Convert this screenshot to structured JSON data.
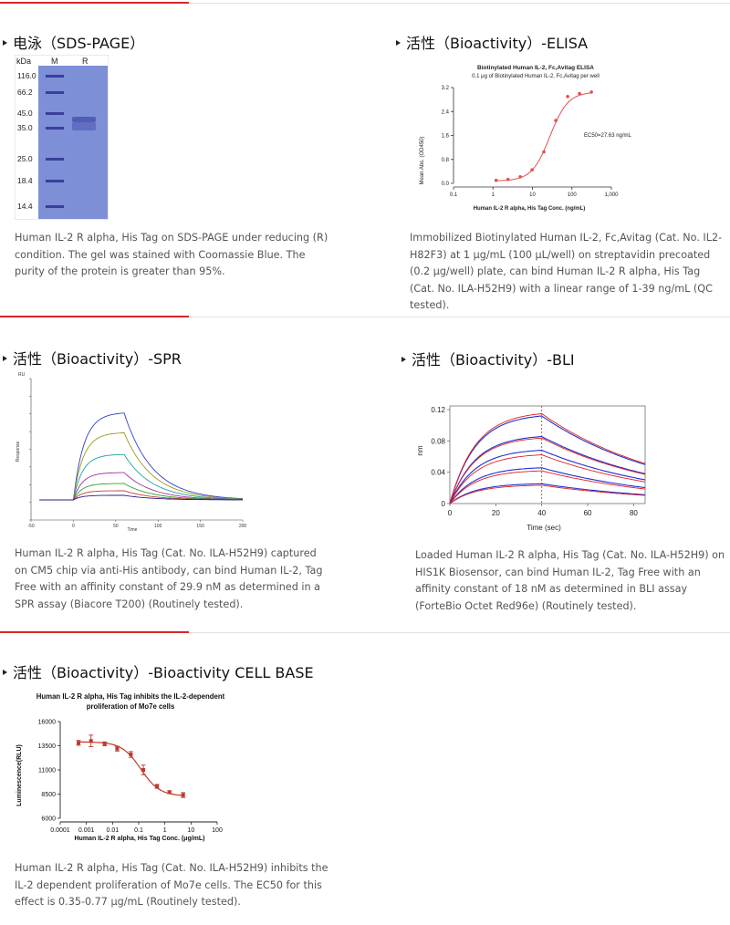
{
  "sections": {
    "sds": {
      "title": "电泳（SDS-PAGE）",
      "gel": {
        "col_kda": "kDa",
        "col_m": "M",
        "col_r": "R",
        "ladder": [
          "116.0",
          "66.2",
          "45.0",
          "35.0",
          "25.0",
          "18.4",
          "14.4"
        ]
      },
      "description": "Human IL-2 R alpha, His Tag on SDS-PAGE under reducing (R) condition. The gel was stained with Coomassie Blue. The purity of the protein is greater than 95%."
    },
    "elisa": {
      "title": "活性（Bioactivity）-ELISA",
      "chart_title": "Biotinylated Human IL-2, Fc,Avitag ELISA",
      "chart_subtitle": "0.1 μg of Biotinylated Human IL-2, Fc,Avitag per well",
      "ylabel": "Mean Abs. (OD450)",
      "xlabel": "Human IL-2 R alpha, His Tag Conc. (ng/mL)",
      "annotation": "EC50=27.63 ng/mL",
      "description": "Immobilized Biotinylated Human IL-2, Fc,Avitag (Cat. No. IL2-H82F3) at 1 μg/mL (100 μL/well) on streptavidin precoated (0.2 μg/well) plate, can bind Human IL-2 R alpha, His Tag (Cat. No. ILA-H52H9) with a linear range of 1-39 ng/mL (QC tested)."
    },
    "spr": {
      "title": "活性（Bioactivity）-SPR",
      "ylabel": "Response",
      "xlabel": "Time",
      "yunit": "RU",
      "description": "Human IL-2 R alpha, His Tag (Cat. No. ILA-H52H9) captured on CM5 chip via anti-His antibody, can bind Human IL-2, Tag Free with an affinity constant of 29.9 nM as determined in a SPR assay (Biacore T200) (Routinely tested)."
    },
    "bli": {
      "title": "活性（Bioactivity）-BLI",
      "ylabel": "nm",
      "xlabel": "Time (sec)",
      "description": "Loaded Human IL-2 R alpha, His Tag (Cat. No. ILA-H52H9) on HIS1K Biosensor, can bind Human IL-2, Tag Free with an affinity constant of 18 nM as determined in BLI assay (ForteBio Octet Red96e) (Routinely tested)."
    },
    "cell": {
      "title": "活性（Bioactivity）-Bioactivity CELL BASE",
      "chart_title_1": "Human IL-2 R alpha, His Tag inhibits the IL-2-dependent",
      "chart_title_2": "proliferation of Mo7e cells",
      "ylabel": "Luminescence(RLU)",
      "xlabel": "Human IL-2 R alpha, His Tag Conc. (μg/mL)",
      "description": "Human IL-2 R alpha, His Tag (Cat. No. ILA-H52H9) inhibits the IL-2 dependent proliferation of Mo7e cells. The EC50 for this effect is 0.35-0.77 μg/mL (Routinely tested)."
    }
  },
  "colors": {
    "accent_red": "#d9252b",
    "gel_blue": "#7d8fd6",
    "elisa_red": "#e05050"
  },
  "chart_data": [
    {
      "type": "scatter",
      "title": "Biotinylated Human IL-2, Fc,Avitag ELISA",
      "subtitle": "0.1 μg of Biotinylated Human IL-2, Fc,Avitag per well",
      "xlabel": "Human IL-2 R alpha, His Tag Conc. (ng/mL)",
      "ylabel": "Mean Abs. (OD450)",
      "xscale": "log",
      "xlim": [
        0.1,
        1000
      ],
      "ylim": [
        0,
        3.2
      ],
      "xticks": [
        "0.1",
        "1",
        "10",
        "100",
        "1,000"
      ],
      "yticks": [
        "0.0",
        "0.8",
        "1.6",
        "2.4",
        "3.2"
      ],
      "x": [
        1.2,
        2.4,
        4.9,
        9.8,
        19.5,
        39,
        78,
        156,
        312
      ],
      "y": [
        0.1,
        0.13,
        0.22,
        0.45,
        1.05,
        2.1,
        2.9,
        3.0,
        3.05
      ],
      "annotation": "EC50=27.63 ng/mL"
    },
    {
      "type": "line",
      "ylabel": "Response",
      "xlabel": "Time",
      "yunit": "RU",
      "xlim": [
        -50,
        200
      ],
      "xticks": [
        "-50",
        "0",
        "50",
        "100",
        "150",
        "200"
      ],
      "series": [
        {
          "amplitude": 48,
          "color": "#3040c0"
        },
        {
          "amplitude": 37,
          "color": "#9a9a20"
        },
        {
          "amplitude": 25,
          "color": "#20a0a0"
        },
        {
          "amplitude": 15,
          "color": "#a030a0"
        },
        {
          "amplitude": 9,
          "color": "#30a030"
        },
        {
          "amplitude": 5,
          "color": "#c04040"
        },
        {
          "amplitude": 2.5,
          "color": "#202080"
        }
      ]
    },
    {
      "type": "line",
      "xlabel": "Time (sec)",
      "ylabel": "nm",
      "xlim": [
        0,
        85
      ],
      "ylim": [
        0,
        0.12
      ],
      "xticks": [
        "0",
        "20",
        "40",
        "60",
        "80"
      ],
      "yticks": [
        "0",
        "0.04",
        "0.08",
        "0.12"
      ],
      "association_end": 40,
      "series": [
        {
          "name_fit": false,
          "color": "#2030d0",
          "amplitude": 0.115
        },
        {
          "name_fit": true,
          "color": "#e02020",
          "amplitude": 0.118
        },
        {
          "name_fit": false,
          "color": "#2030d0",
          "amplitude": 0.088
        },
        {
          "name_fit": true,
          "color": "#e02020",
          "amplitude": 0.086
        },
        {
          "name_fit": false,
          "color": "#2030d0",
          "amplitude": 0.07
        },
        {
          "name_fit": true,
          "color": "#e02020",
          "amplitude": 0.064
        },
        {
          "name_fit": false,
          "color": "#2030d0",
          "amplitude": 0.047
        },
        {
          "name_fit": true,
          "color": "#e02020",
          "amplitude": 0.043
        },
        {
          "name_fit": false,
          "color": "#2030d0",
          "amplitude": 0.026
        },
        {
          "name_fit": true,
          "color": "#e02020",
          "amplitude": 0.024
        }
      ]
    },
    {
      "type": "scatter",
      "title": "Human IL-2 R alpha, His Tag inhibits the IL-2-dependent proliferation of Mo7e cells",
      "xlabel": "Human IL-2 R alpha, His Tag Conc. (μg/mL)",
      "ylabel": "Luminescence(RLU)",
      "xscale": "log",
      "xlim": [
        0.0001,
        100
      ],
      "ylim": [
        6000,
        16000
      ],
      "xticks": [
        "0.0001",
        "0.001",
        "0.01",
        "0.1",
        "1",
        "10",
        "100"
      ],
      "yticks": [
        "6000",
        "8500",
        "11000",
        "13500",
        "16000"
      ],
      "x": [
        0.0005,
        0.0015,
        0.005,
        0.015,
        0.05,
        0.15,
        0.5,
        1.5,
        5
      ],
      "y": [
        13800,
        14000,
        13700,
        13200,
        12600,
        11000,
        9300,
        8700,
        8400
      ],
      "error": [
        250,
        600,
        200,
        250,
        300,
        500,
        200,
        150,
        250
      ]
    }
  ]
}
